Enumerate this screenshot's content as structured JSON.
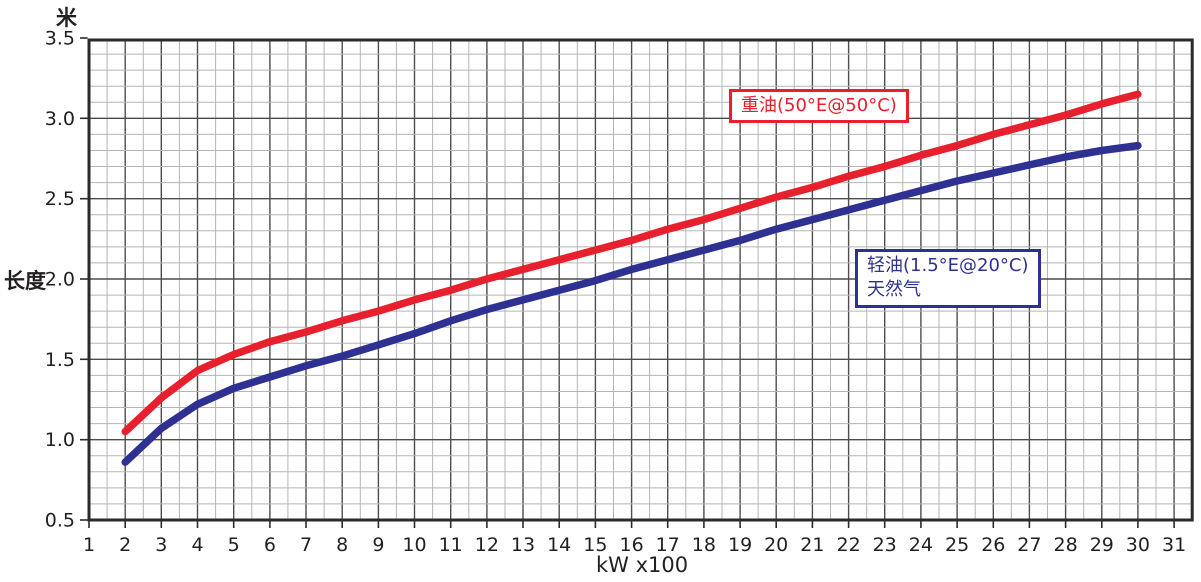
{
  "colors": {
    "heavy_oil": "#e8202e",
    "light_oil_gas": "#2e3192",
    "grid_major": "#4d4d4d",
    "grid_minor": "#b5b5b5",
    "border": "#2b2b2b",
    "text": "#231f20"
  },
  "chart_data": {
    "type": "line",
    "title": "",
    "x_axis": {
      "label": "kW x100",
      "min": 1,
      "max": 31,
      "ticks": [
        1,
        2,
        3,
        4,
        5,
        6,
        7,
        8,
        9,
        10,
        11,
        12,
        13,
        14,
        15,
        16,
        17,
        18,
        19,
        20,
        21,
        22,
        23,
        24,
        25,
        26,
        27,
        28,
        29,
        30,
        31
      ],
      "minor_step": 0.5
    },
    "y_axis": {
      "label": "长度",
      "unit": "米",
      "min": 0.5,
      "max": 3.5,
      "ticks": [
        "3.5",
        "3.0",
        "2.5",
        "2.0",
        "1.5",
        "1.0",
        "0.5"
      ],
      "minor_step": 0.1
    },
    "grid": "on",
    "legend_position": "inline-annotations",
    "series": [
      {
        "id": "heavy-oil",
        "name": "重油(50°E@50°C)",
        "color": "#e8202e",
        "x": [
          2,
          3,
          4,
          5,
          6,
          7,
          8,
          9,
          10,
          11,
          12,
          13,
          14,
          15,
          16,
          17,
          18,
          19,
          20,
          21,
          22,
          23,
          24,
          25,
          26,
          27,
          28,
          29,
          30
        ],
        "values": [
          1.05,
          1.26,
          1.43,
          1.53,
          1.61,
          1.67,
          1.74,
          1.8,
          1.87,
          1.93,
          2.0,
          2.06,
          2.12,
          2.18,
          2.24,
          2.31,
          2.37,
          2.44,
          2.51,
          2.57,
          2.64,
          2.7,
          2.77,
          2.83,
          2.9,
          2.96,
          3.02,
          3.09,
          3.15
        ]
      },
      {
        "id": "light-oil-gas",
        "name": "轻油(1.5°E@20°C) / 天然气",
        "color": "#2e3192",
        "x": [
          2,
          3,
          4,
          5,
          6,
          7,
          8,
          9,
          10,
          11,
          12,
          13,
          14,
          15,
          16,
          17,
          18,
          19,
          20,
          21,
          22,
          23,
          24,
          25,
          26,
          27,
          28,
          29,
          30
        ],
        "values": [
          0.86,
          1.07,
          1.22,
          1.32,
          1.39,
          1.46,
          1.52,
          1.59,
          1.66,
          1.74,
          1.81,
          1.87,
          1.93,
          1.99,
          2.06,
          2.12,
          2.18,
          2.24,
          2.31,
          2.37,
          2.43,
          2.49,
          2.55,
          2.61,
          2.66,
          2.71,
          2.76,
          2.8,
          2.83
        ]
      }
    ],
    "annotations": [
      {
        "lines": [
          "重油(50°E@50°C)"
        ],
        "color": "#e8202e"
      },
      {
        "lines": [
          "轻油(1.5°E@20°C)",
          "天然气"
        ],
        "color": "#2e3192"
      }
    ]
  }
}
